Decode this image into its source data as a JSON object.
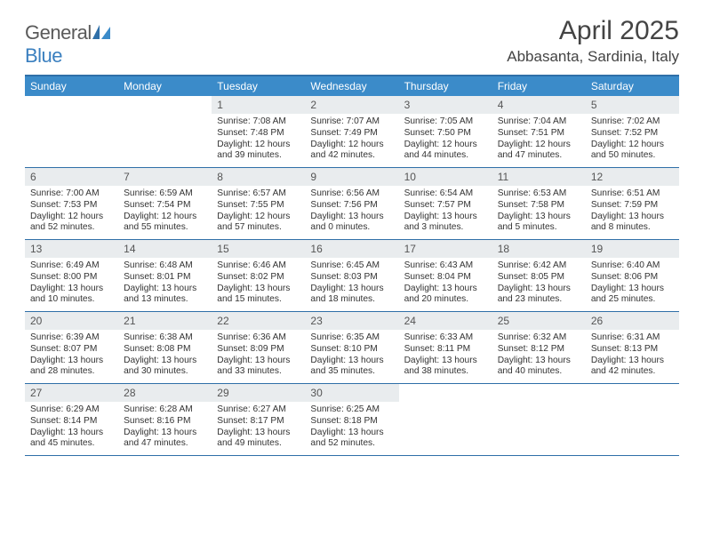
{
  "logo": {
    "text_general": "General",
    "text_blue": "Blue"
  },
  "title": "April 2025",
  "location": "Abbasanta, Sardinia, Italy",
  "colors": {
    "header_bg": "#3b8bc9",
    "border": "#2f6fa8",
    "daynum_bg": "#e9ecee",
    "text": "#333333",
    "logo_gray": "#5a5a5a",
    "logo_blue": "#3a7fbf"
  },
  "daynames": [
    "Sunday",
    "Monday",
    "Tuesday",
    "Wednesday",
    "Thursday",
    "Friday",
    "Saturday"
  ],
  "weeks": [
    [
      {
        "empty": true
      },
      {
        "empty": true
      },
      {
        "num": "1",
        "sunrise": "Sunrise: 7:08 AM",
        "sunset": "Sunset: 7:48 PM",
        "daylight": "Daylight: 12 hours and 39 minutes."
      },
      {
        "num": "2",
        "sunrise": "Sunrise: 7:07 AM",
        "sunset": "Sunset: 7:49 PM",
        "daylight": "Daylight: 12 hours and 42 minutes."
      },
      {
        "num": "3",
        "sunrise": "Sunrise: 7:05 AM",
        "sunset": "Sunset: 7:50 PM",
        "daylight": "Daylight: 12 hours and 44 minutes."
      },
      {
        "num": "4",
        "sunrise": "Sunrise: 7:04 AM",
        "sunset": "Sunset: 7:51 PM",
        "daylight": "Daylight: 12 hours and 47 minutes."
      },
      {
        "num": "5",
        "sunrise": "Sunrise: 7:02 AM",
        "sunset": "Sunset: 7:52 PM",
        "daylight": "Daylight: 12 hours and 50 minutes."
      }
    ],
    [
      {
        "num": "6",
        "sunrise": "Sunrise: 7:00 AM",
        "sunset": "Sunset: 7:53 PM",
        "daylight": "Daylight: 12 hours and 52 minutes."
      },
      {
        "num": "7",
        "sunrise": "Sunrise: 6:59 AM",
        "sunset": "Sunset: 7:54 PM",
        "daylight": "Daylight: 12 hours and 55 minutes."
      },
      {
        "num": "8",
        "sunrise": "Sunrise: 6:57 AM",
        "sunset": "Sunset: 7:55 PM",
        "daylight": "Daylight: 12 hours and 57 minutes."
      },
      {
        "num": "9",
        "sunrise": "Sunrise: 6:56 AM",
        "sunset": "Sunset: 7:56 PM",
        "daylight": "Daylight: 13 hours and 0 minutes."
      },
      {
        "num": "10",
        "sunrise": "Sunrise: 6:54 AM",
        "sunset": "Sunset: 7:57 PM",
        "daylight": "Daylight: 13 hours and 3 minutes."
      },
      {
        "num": "11",
        "sunrise": "Sunrise: 6:53 AM",
        "sunset": "Sunset: 7:58 PM",
        "daylight": "Daylight: 13 hours and 5 minutes."
      },
      {
        "num": "12",
        "sunrise": "Sunrise: 6:51 AM",
        "sunset": "Sunset: 7:59 PM",
        "daylight": "Daylight: 13 hours and 8 minutes."
      }
    ],
    [
      {
        "num": "13",
        "sunrise": "Sunrise: 6:49 AM",
        "sunset": "Sunset: 8:00 PM",
        "daylight": "Daylight: 13 hours and 10 minutes."
      },
      {
        "num": "14",
        "sunrise": "Sunrise: 6:48 AM",
        "sunset": "Sunset: 8:01 PM",
        "daylight": "Daylight: 13 hours and 13 minutes."
      },
      {
        "num": "15",
        "sunrise": "Sunrise: 6:46 AM",
        "sunset": "Sunset: 8:02 PM",
        "daylight": "Daylight: 13 hours and 15 minutes."
      },
      {
        "num": "16",
        "sunrise": "Sunrise: 6:45 AM",
        "sunset": "Sunset: 8:03 PM",
        "daylight": "Daylight: 13 hours and 18 minutes."
      },
      {
        "num": "17",
        "sunrise": "Sunrise: 6:43 AM",
        "sunset": "Sunset: 8:04 PM",
        "daylight": "Daylight: 13 hours and 20 minutes."
      },
      {
        "num": "18",
        "sunrise": "Sunrise: 6:42 AM",
        "sunset": "Sunset: 8:05 PM",
        "daylight": "Daylight: 13 hours and 23 minutes."
      },
      {
        "num": "19",
        "sunrise": "Sunrise: 6:40 AM",
        "sunset": "Sunset: 8:06 PM",
        "daylight": "Daylight: 13 hours and 25 minutes."
      }
    ],
    [
      {
        "num": "20",
        "sunrise": "Sunrise: 6:39 AM",
        "sunset": "Sunset: 8:07 PM",
        "daylight": "Daylight: 13 hours and 28 minutes."
      },
      {
        "num": "21",
        "sunrise": "Sunrise: 6:38 AM",
        "sunset": "Sunset: 8:08 PM",
        "daylight": "Daylight: 13 hours and 30 minutes."
      },
      {
        "num": "22",
        "sunrise": "Sunrise: 6:36 AM",
        "sunset": "Sunset: 8:09 PM",
        "daylight": "Daylight: 13 hours and 33 minutes."
      },
      {
        "num": "23",
        "sunrise": "Sunrise: 6:35 AM",
        "sunset": "Sunset: 8:10 PM",
        "daylight": "Daylight: 13 hours and 35 minutes."
      },
      {
        "num": "24",
        "sunrise": "Sunrise: 6:33 AM",
        "sunset": "Sunset: 8:11 PM",
        "daylight": "Daylight: 13 hours and 38 minutes."
      },
      {
        "num": "25",
        "sunrise": "Sunrise: 6:32 AM",
        "sunset": "Sunset: 8:12 PM",
        "daylight": "Daylight: 13 hours and 40 minutes."
      },
      {
        "num": "26",
        "sunrise": "Sunrise: 6:31 AM",
        "sunset": "Sunset: 8:13 PM",
        "daylight": "Daylight: 13 hours and 42 minutes."
      }
    ],
    [
      {
        "num": "27",
        "sunrise": "Sunrise: 6:29 AM",
        "sunset": "Sunset: 8:14 PM",
        "daylight": "Daylight: 13 hours and 45 minutes."
      },
      {
        "num": "28",
        "sunrise": "Sunrise: 6:28 AM",
        "sunset": "Sunset: 8:16 PM",
        "daylight": "Daylight: 13 hours and 47 minutes."
      },
      {
        "num": "29",
        "sunrise": "Sunrise: 6:27 AM",
        "sunset": "Sunset: 8:17 PM",
        "daylight": "Daylight: 13 hours and 49 minutes."
      },
      {
        "num": "30",
        "sunrise": "Sunrise: 6:25 AM",
        "sunset": "Sunset: 8:18 PM",
        "daylight": "Daylight: 13 hours and 52 minutes."
      },
      {
        "empty": true
      },
      {
        "empty": true
      },
      {
        "empty": true
      }
    ]
  ]
}
